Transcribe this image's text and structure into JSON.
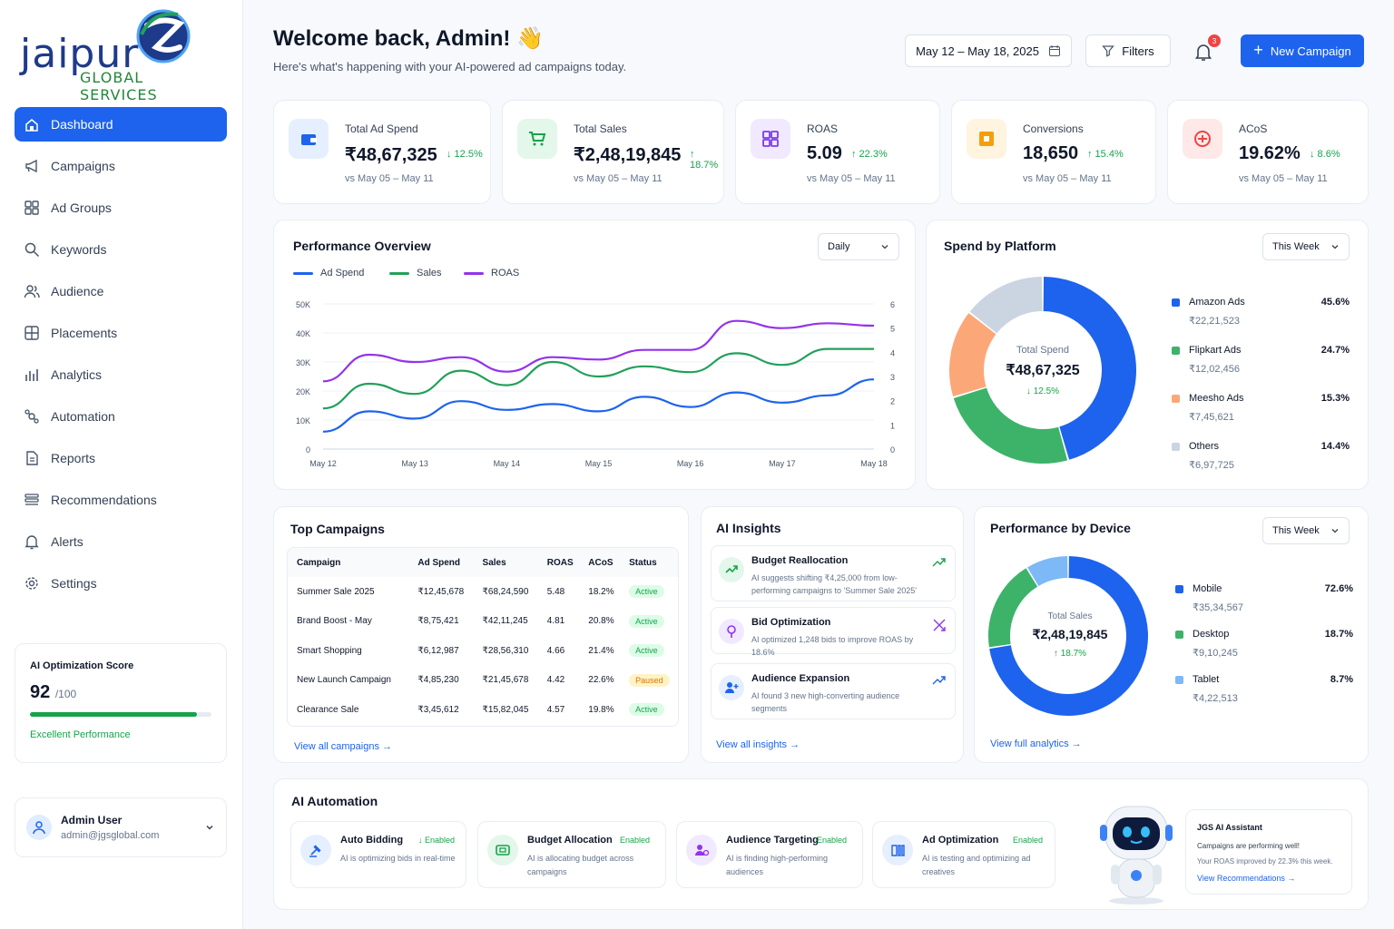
{
  "brand": {
    "name_main": "jaipur",
    "name_sub": "GLOBAL SERVICES"
  },
  "sidebar": {
    "items": [
      {
        "label": "Dashboard",
        "icon": "home-icon",
        "active": true
      },
      {
        "label": "Campaigns",
        "icon": "megaphone-icon"
      },
      {
        "label": "Ad Groups",
        "icon": "grid-icon"
      },
      {
        "label": "Keywords",
        "icon": "search-icon"
      },
      {
        "label": "Audience",
        "icon": "users-icon"
      },
      {
        "label": "Placements",
        "icon": "layout-icon"
      },
      {
        "label": "Analytics",
        "icon": "bar-chart-icon"
      },
      {
        "label": "Automation",
        "icon": "automation-icon"
      },
      {
        "label": "Reports",
        "icon": "document-icon"
      },
      {
        "label": "Recommendations",
        "icon": "list-icon"
      },
      {
        "label": "Alerts",
        "icon": "bell-icon"
      },
      {
        "label": "Settings",
        "icon": "gear-icon"
      }
    ],
    "score": {
      "title": "AI Optimization Score",
      "value": "92",
      "max": "/100",
      "fraction": 0.92,
      "label": "Excellent Performance"
    },
    "user": {
      "name": "Admin User",
      "email": "admin@jgsglobal.com"
    }
  },
  "header": {
    "title": "Welcome back, Admin! 👋",
    "subtitle": "Here's what's happening with your AI-powered ad campaigns today.",
    "date_range": "May 12 – May 18, 2025",
    "filters_label": "Filters",
    "notification_count": "3",
    "new_campaign_label": "New Campaign"
  },
  "kpis": [
    {
      "label": "Total Ad Spend",
      "value": "₹48,67,325",
      "change": "↓ 12.5%",
      "vs": "vs May 05 – May 11",
      "color": "#1d63ed",
      "bg": "#e6efff"
    },
    {
      "label": "Total Sales",
      "value": "₹2,48,19,845",
      "change": "↑ 18.7%",
      "vs": "vs May 05 – May 11",
      "color": "#16a34a",
      "bg": "#e3f7ea"
    },
    {
      "label": "ROAS",
      "value": "5.09",
      "change": "↑ 22.3%",
      "vs": "vs May 05 – May 11",
      "color": "#7c3aed",
      "bg": "#f1e9ff"
    },
    {
      "label": "Conversions",
      "value": "18,650",
      "change": "↑ 15.4%",
      "vs": "vs May 05 – May 11",
      "color": "#f59e0b",
      "bg": "#fff4e0"
    },
    {
      "label": "ACoS",
      "value": "19.62%",
      "change": "↓ 8.6%",
      "vs": "vs May 05 – May 11",
      "color": "#ef4444",
      "bg": "#ffe8e8"
    }
  ],
  "performance": {
    "title": "Performance Overview",
    "period": "Daily",
    "legend": [
      "Ad Spend",
      "Sales",
      "ROAS"
    ]
  },
  "chart_data": {
    "type": "line",
    "categories": [
      "May 12",
      "May 13",
      "May 14",
      "May 15",
      "May 16",
      "May 17",
      "May 18"
    ],
    "y_ticks_left": [
      "0",
      "10K",
      "20K",
      "30K",
      "40K",
      "50K"
    ],
    "y_ticks_right": [
      "0",
      "1",
      "2",
      "3",
      "4",
      "5",
      "6"
    ],
    "ylim_left": [
      0,
      50000
    ],
    "ylim_right": [
      0,
      6
    ],
    "series": [
      {
        "name": "Ad Spend",
        "axis": "left",
        "color": "#1d63ed",
        "x": [
          0,
          0.5,
          1,
          1.5,
          2,
          2.5,
          3,
          3.5,
          4,
          4.5,
          5,
          5.5,
          6
        ],
        "values": [
          6000,
          13000,
          10500,
          16500,
          13500,
          15500,
          13000,
          18000,
          14500,
          19500,
          16000,
          18500,
          24000
        ]
      },
      {
        "name": "Sales",
        "axis": "left",
        "color": "#22a05a",
        "x": [
          0,
          0.5,
          1,
          1.5,
          2,
          2.5,
          3,
          3.5,
          4,
          4.5,
          5,
          5.5,
          6
        ],
        "values": [
          14000,
          22500,
          19000,
          27000,
          22000,
          30000,
          25000,
          28500,
          26500,
          33000,
          29000,
          34500,
          34500
        ]
      },
      {
        "name": "ROAS",
        "axis": "right",
        "color": "#9333ea",
        "x": [
          0,
          0.5,
          1,
          1.5,
          2,
          2.5,
          3,
          3.5,
          4,
          4.5,
          5,
          5.5,
          6
        ],
        "values": [
          2.8,
          3.9,
          3.6,
          3.8,
          3.2,
          3.8,
          3.7,
          4.1,
          4.1,
          5.3,
          5.0,
          5.2,
          5.1
        ]
      }
    ]
  },
  "spend_platform": {
    "title": "Spend by Platform",
    "period": "This Week",
    "center_label": "Total Spend",
    "center_value": "₹48,67,325",
    "center_change": "↓ 12.5%",
    "items": [
      {
        "name": "Amazon Ads",
        "pct": "45.6%",
        "amount": "₹22,21,523",
        "value": 45.6,
        "color": "#1d63ed"
      },
      {
        "name": "Flipkart Ads",
        "pct": "24.7%",
        "amount": "₹12,02,456",
        "value": 24.7,
        "color": "#3db36a"
      },
      {
        "name": "Meesho Ads",
        "pct": "15.3%",
        "amount": "₹7,45,621",
        "value": 15.3,
        "color": "#fca778"
      },
      {
        "name": "Others",
        "pct": "14.4%",
        "amount": "₹6,97,725",
        "value": 14.4,
        "color": "#cbd5e1"
      }
    ]
  },
  "top_campaigns": {
    "title": "Top Campaigns",
    "headers": [
      "Campaign",
      "Ad Spend",
      "Sales",
      "ROAS",
      "ACoS",
      "Status"
    ],
    "rows": [
      [
        "Summer Sale 2025",
        "₹12,45,678",
        "₹68,24,590",
        "5.48",
        "18.2%",
        "Active"
      ],
      [
        "Brand Boost - May",
        "₹8,75,421",
        "₹42,11,245",
        "4.81",
        "20.8%",
        "Active"
      ],
      [
        "Smart Shopping",
        "₹6,12,987",
        "₹28,56,310",
        "4.66",
        "21.4%",
        "Active"
      ],
      [
        "New Launch Campaign",
        "₹4,85,230",
        "₹21,45,678",
        "4.42",
        "22.6%",
        "Paused"
      ],
      [
        "Clearance Sale",
        "₹3,45,612",
        "₹15,82,045",
        "4.57",
        "19.8%",
        "Active"
      ]
    ],
    "link": "View all campaigns →"
  },
  "insights": {
    "title": "AI Insights",
    "items": [
      {
        "title": "Budget Reallocation",
        "desc": "AI suggests shifting ₹4,25,000 from low-performing campaigns to 'Summer Sale 2025'",
        "icon": "trend-up-icon",
        "color": "#16a34a",
        "bg": "#e3f7ea"
      },
      {
        "title": "Bid Optimization",
        "desc": "AI optimized 1,248 bids to improve ROAS by 18.6%",
        "icon": "target-icon",
        "color": "#9333ea",
        "bg": "#f1e9ff"
      },
      {
        "title": "Audience Expansion",
        "desc": "AI found 3 new high-converting audience segments",
        "icon": "user-plus-icon",
        "color": "#1d63ed",
        "bg": "#e6efff"
      }
    ],
    "link": "View all insights →"
  },
  "device": {
    "title": "Performance by Device",
    "period": "This Week",
    "center_label": "Total Sales",
    "center_value": "₹2,48,19,845",
    "center_change": "↑ 18.7%",
    "items": [
      {
        "name": "Mobile",
        "pct": "72.6%",
        "amount": "₹35,34,567",
        "value": 72.6,
        "color": "#1d63ed"
      },
      {
        "name": "Desktop",
        "pct": "18.7%",
        "amount": "₹9,10,245",
        "value": 18.7,
        "color": "#3db36a"
      },
      {
        "name": "Tablet",
        "pct": "8.7%",
        "amount": "₹4,22,513",
        "value": 8.7,
        "color": "#7db8f7"
      }
    ],
    "link": "View full analytics →"
  },
  "automation": {
    "title": "AI Automation",
    "items": [
      {
        "title": "Auto Bidding",
        "status": "↓ Enabled",
        "desc": "AI is optimizing bids in real-time",
        "icon": "auction-icon"
      },
      {
        "title": "Budget Allocation",
        "status": "Enabled",
        "desc": "AI is allocating budget across campaigns",
        "icon": "wallet-icon"
      },
      {
        "title": "Audience Targeting",
        "status": "Enabled",
        "desc": "AI is finding high-performing audiences",
        "icon": "audience-icon"
      },
      {
        "title": "Ad Optimization",
        "status": "Enabled",
        "desc": "AI is testing and optimizing ad creatives",
        "icon": "creative-icon"
      }
    ]
  },
  "assistant": {
    "title": "JGS AI Assistant",
    "line1": "Campaigns are performing well!",
    "line2": "Your ROAS improved by 22.3% this week.",
    "link": "View Recommendations →"
  }
}
